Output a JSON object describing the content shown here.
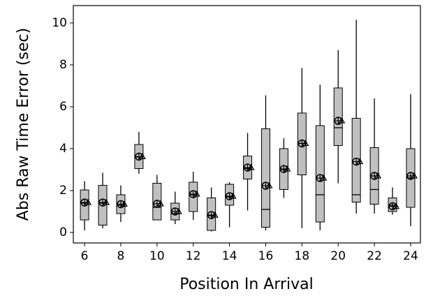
{
  "chart_data": {
    "type": "box",
    "xlabel": "Position In Arrival",
    "ylabel": "Abs Raw Time Error (sec)",
    "x": [
      6,
      7,
      8,
      9,
      10,
      11,
      12,
      13,
      14,
      15,
      16,
      17,
      18,
      19,
      20,
      21,
      22,
      23,
      24
    ],
    "boxes": [
      {
        "whislo": 0.1,
        "q1": 0.6,
        "med": 1.4,
        "q3": 2.03,
        "whishi": 2.45,
        "mean": 1.43
      },
      {
        "whislo": 0.2,
        "q1": 0.35,
        "med": 1.4,
        "q3": 2.25,
        "whishi": 2.85,
        "mean": 1.43
      },
      {
        "whislo": 0.5,
        "q1": 0.9,
        "med": 1.3,
        "q3": 1.8,
        "whishi": 2.25,
        "mean": 1.35
      },
      {
        "whislo": 2.8,
        "q1": 3.05,
        "med": 3.6,
        "q3": 4.2,
        "whishi": 4.8,
        "mean": 3.62
      },
      {
        "whislo": 0.6,
        "q1": 0.6,
        "med": 1.2,
        "q3": 2.35,
        "whishi": 2.75,
        "mean": 1.37
      },
      {
        "whislo": 0.4,
        "q1": 0.6,
        "med": 0.9,
        "q3": 1.4,
        "whishi": 1.95,
        "mean": 1.0
      },
      {
        "whislo": 0.6,
        "q1": 1.0,
        "med": 1.8,
        "q3": 2.4,
        "whishi": 2.9,
        "mean": 1.83
      },
      {
        "whislo": 0.05,
        "q1": 0.1,
        "med": 0.8,
        "q3": 1.65,
        "whishi": 2.15,
        "mean": 0.83
      },
      {
        "whislo": 0.25,
        "q1": 1.3,
        "med": 1.7,
        "q3": 2.3,
        "whishi": 2.4,
        "mean": 1.73
      },
      {
        "whislo": 1.05,
        "q1": 2.55,
        "med": 3.05,
        "q3": 3.65,
        "whishi": 4.75,
        "mean": 3.1
      },
      {
        "whislo": 0.1,
        "q1": 0.25,
        "med": 1.1,
        "q3": 4.95,
        "whishi": 6.55,
        "mean": 2.23
      },
      {
        "whislo": 1.65,
        "q1": 2.05,
        "med": 3.0,
        "q3": 4.0,
        "whishi": 4.5,
        "mean": 3.03
      },
      {
        "whislo": 0.2,
        "q1": 2.75,
        "med": 4.25,
        "q3": 5.7,
        "whishi": 7.85,
        "mean": 4.25
      },
      {
        "whislo": 0.1,
        "q1": 0.5,
        "med": 1.8,
        "q3": 5.1,
        "whishi": 7.05,
        "mean": 2.6
      },
      {
        "whislo": 2.35,
        "q1": 4.15,
        "med": 5.0,
        "q3": 6.9,
        "whishi": 8.7,
        "mean": 5.33
      },
      {
        "whislo": 0.9,
        "q1": 1.45,
        "med": 1.8,
        "q3": 5.45,
        "whishi": 10.15,
        "mean": 3.38
      },
      {
        "whislo": 0.9,
        "q1": 1.35,
        "med": 2.05,
        "q3": 4.05,
        "whishi": 6.4,
        "mean": 2.7
      },
      {
        "whislo": 0.85,
        "q1": 1.0,
        "med": 1.3,
        "q3": 1.65,
        "whishi": 2.15,
        "mean": 1.25
      },
      {
        "whislo": 0.3,
        "q1": 1.2,
        "med": 2.6,
        "q3": 4.0,
        "whishi": 6.6,
        "mean": 2.7
      }
    ],
    "color": "#c0c0c0",
    "xlim": [
      5.38,
      24.54
    ],
    "ylim": [
      -0.5,
      10.83
    ],
    "xticks": [
      6,
      8,
      10,
      12,
      14,
      16,
      18,
      20,
      22,
      24
    ],
    "yticks": [
      0,
      2,
      4,
      6,
      8,
      10
    ]
  }
}
